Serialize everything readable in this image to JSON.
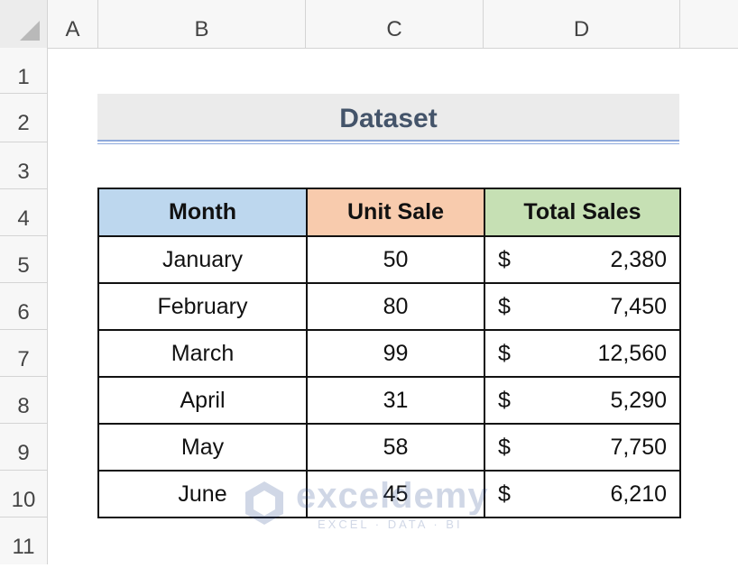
{
  "columns": [
    "A",
    "B",
    "C",
    "D"
  ],
  "rows": [
    "1",
    "2",
    "3",
    "4",
    "5",
    "6",
    "7",
    "8",
    "9",
    "10",
    "11"
  ],
  "title": "Dataset",
  "table": {
    "headers": [
      "Month",
      "Unit Sale",
      "Total Sales"
    ],
    "rows": [
      {
        "month": "January",
        "unit_sale": "50",
        "currency": "$",
        "total_sales": "2,380"
      },
      {
        "month": "February",
        "unit_sale": "80",
        "currency": "$",
        "total_sales": "7,450"
      },
      {
        "month": "March",
        "unit_sale": "99",
        "currency": "$",
        "total_sales": "12,560"
      },
      {
        "month": "April",
        "unit_sale": "31",
        "currency": "$",
        "total_sales": "5,290"
      },
      {
        "month": "May",
        "unit_sale": "58",
        "currency": "$",
        "total_sales": "7,750"
      },
      {
        "month": "June",
        "unit_sale": "45",
        "currency": "$",
        "total_sales": "6,210"
      }
    ]
  },
  "watermark": {
    "brand": "exceldemy",
    "tagline": "EXCEL · DATA · BI"
  },
  "colors": {
    "month_header": "#bdd7ee",
    "unit_header": "#f8cbad",
    "total_header": "#c6e0b4",
    "title_text": "#44546a"
  }
}
